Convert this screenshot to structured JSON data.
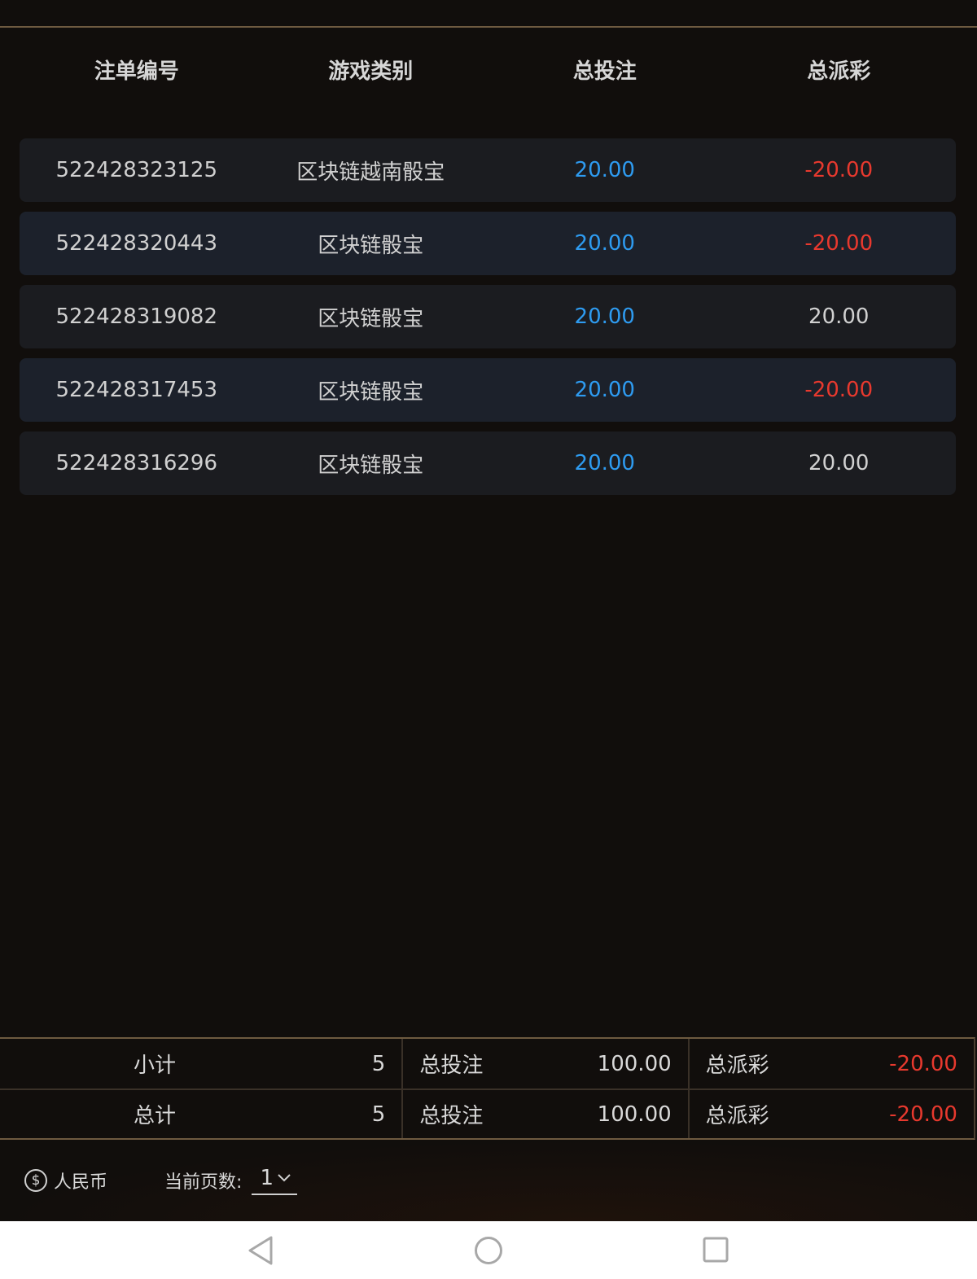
{
  "table": {
    "headers": [
      "注单编号",
      "游戏类别",
      "总投注",
      "总派彩"
    ],
    "rows": [
      {
        "id": "522428323125",
        "game": "区块链越南骰宝",
        "bet": "20.00",
        "payout": "-20.00"
      },
      {
        "id": "522428320443",
        "game": "区块链骰宝",
        "bet": "20.00",
        "payout": "-20.00"
      },
      {
        "id": "522428319082",
        "game": "区块链骰宝",
        "bet": "20.00",
        "payout": "20.00"
      },
      {
        "id": "522428317453",
        "game": "区块链骰宝",
        "bet": "20.00",
        "payout": "-20.00"
      },
      {
        "id": "522428316296",
        "game": "区块链骰宝",
        "bet": "20.00",
        "payout": "20.00"
      }
    ]
  },
  "summary": [
    {
      "label": "小计",
      "count": "5",
      "bet_label": "总投注",
      "bet": "100.00",
      "payout_label": "总派彩",
      "payout": "-20.00"
    },
    {
      "label": "总计",
      "count": "5",
      "bet_label": "总投注",
      "bet": "100.00",
      "payout_label": "总派彩",
      "payout": "-20.00"
    }
  ],
  "footer": {
    "currency_icon": "$",
    "currency": "人民币",
    "page_label": "当前页数:",
    "page": "1"
  },
  "colors": {
    "bet": "#2e9bf0",
    "negative": "#e8392e",
    "accent_line": "#6e5a40"
  }
}
